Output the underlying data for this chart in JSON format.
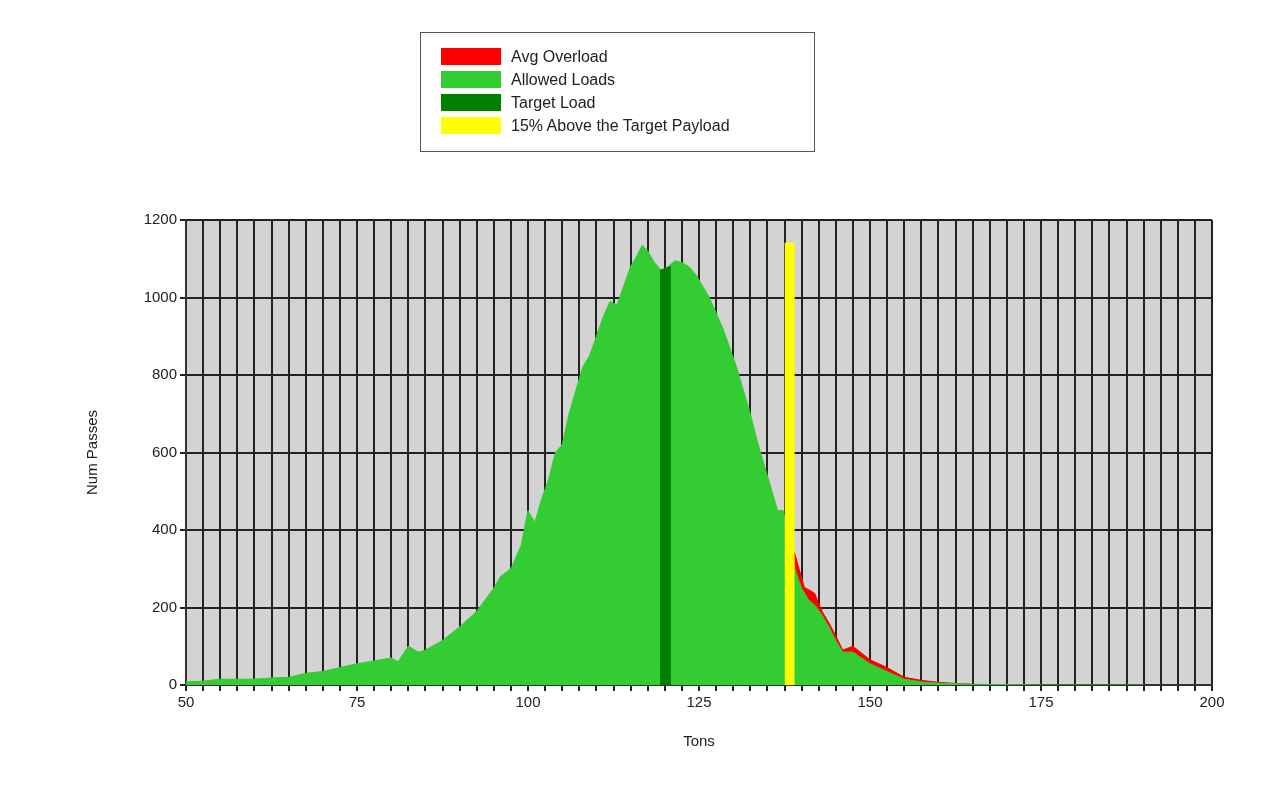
{
  "chart_data": {
    "type": "area",
    "xlabel": "Tons",
    "ylabel": "Num Passes",
    "legend": "top",
    "grid": true,
    "marker": "none",
    "xlim": [
      50,
      200
    ],
    "ylim": [
      0,
      1200
    ],
    "xticks": [
      50,
      {
        "value": 52.5,
        "label": null
      },
      {
        "value": 55,
        "label": null
      },
      {
        "value": 57.5,
        "label": null
      },
      {
        "value": 60,
        "label": null
      },
      {
        "value": 62.5,
        "label": null
      },
      {
        "value": 65,
        "label": null
      },
      {
        "value": 67.5,
        "label": null
      },
      {
        "value": 70,
        "label": null
      },
      {
        "value": 72.5,
        "label": null
      },
      75,
      {
        "value": 77.5,
        "label": null
      },
      {
        "value": 80,
        "label": null
      },
      {
        "value": 82.5,
        "label": null
      },
      {
        "value": 85,
        "label": null
      },
      {
        "value": 87.5,
        "label": null
      },
      {
        "value": 90,
        "label": null
      },
      {
        "value": 92.5,
        "label": null
      },
      {
        "value": 95,
        "label": null
      },
      {
        "value": 97.5,
        "label": null
      },
      100,
      {
        "value": 102.5,
        "label": null
      },
      {
        "value": 105,
        "label": null
      },
      {
        "value": 107.5,
        "label": null
      },
      {
        "value": 110,
        "label": null
      },
      {
        "value": 112.5,
        "label": null
      },
      {
        "value": 115,
        "label": null
      },
      {
        "value": 117.5,
        "label": null
      },
      {
        "value": 120,
        "label": null
      },
      {
        "value": 122.5,
        "label": null
      },
      125,
      {
        "value": 127.5,
        "label": null
      },
      {
        "value": 130,
        "label": null
      },
      {
        "value": 132.5,
        "label": null
      },
      {
        "value": 135,
        "label": null
      },
      {
        "value": 137.5,
        "label": null
      },
      {
        "value": 140,
        "label": null
      },
      {
        "value": 142.5,
        "label": null
      },
      {
        "value": 145,
        "label": null
      },
      {
        "value": 147.5,
        "label": null
      },
      150,
      {
        "value": 152.5,
        "label": null
      },
      {
        "value": 155,
        "label": null
      },
      {
        "value": 157.5,
        "label": null
      },
      {
        "value": 160,
        "label": null
      },
      {
        "value": 162.5,
        "label": null
      },
      {
        "value": 165,
        "label": null
      },
      {
        "value": 167.5,
        "label": null
      },
      {
        "value": 170,
        "label": null
      },
      {
        "value": 172.5,
        "label": null
      },
      175,
      {
        "value": 177.5,
        "label": null
      },
      {
        "value": 180,
        "label": null
      },
      {
        "value": 182.5,
        "label": null
      },
      {
        "value": 185,
        "label": null
      },
      {
        "value": 187.5,
        "label": null
      },
      {
        "value": 190,
        "label": null
      },
      {
        "value": 192.5,
        "label": null
      },
      {
        "value": 195,
        "label": null
      },
      {
        "value": 197.5,
        "label": null
      },
      200
    ],
    "yticks": [
      0,
      200,
      400,
      600,
      800,
      1000,
      1200
    ],
    "series": [
      {
        "name": "Avg Overload",
        "color": "#ff0000",
        "x": [
          138.9,
          140.4,
          141.9,
          143,
          144,
          145.2,
          146,
          147.5,
          150,
          152.5,
          155,
          157.5,
          160,
          162.5,
          165
        ],
        "values": [
          345,
          252,
          237,
          190,
          160,
          120,
          90,
          100,
          65,
          45,
          20,
          12,
          7,
          4,
          2
        ]
      },
      {
        "name": "Allowed Loads",
        "color": "#33cc33",
        "x": [
          50,
          52.5,
          55,
          57.5,
          60,
          62.5,
          65,
          67.5,
          70,
          72.5,
          75,
          77.5,
          80,
          81,
          82.5,
          84,
          85,
          87.5,
          90,
          92.5,
          95,
          96,
          97.5,
          99,
          100,
          101,
          102,
          103,
          104,
          105,
          106,
          107,
          108,
          109,
          110,
          111,
          112,
          113,
          114,
          115,
          116,
          116.7,
          117.5,
          118.5,
          119.5,
          120.5,
          121.5,
          122.5,
          123.5,
          124.5,
          125.5,
          126.5,
          127.5,
          128.5,
          129.5,
          130.5,
          131.5,
          132.5,
          133.5,
          134.5,
          135.5,
          136.5,
          137.3,
          139,
          140,
          141,
          142,
          143,
          144,
          145,
          146,
          147.5,
          150,
          152.5,
          155,
          157.5,
          160,
          165,
          170,
          175,
          190
        ],
        "values": [
          8,
          10,
          15,
          15,
          15,
          18,
          20,
          30,
          35,
          45,
          55,
          62,
          70,
          60,
          100,
          85,
          90,
          115,
          150,
          190,
          250,
          280,
          300,
          360,
          450,
          420,
          480,
          530,
          600,
          620,
          700,
          760,
          820,
          850,
          900,
          950,
          990,
          980,
          1030,
          1080,
          1110,
          1135,
          1120,
          1090,
          1070,
          1080,
          1095,
          1090,
          1080,
          1060,
          1030,
          1000,
          960,
          920,
          870,
          820,
          760,
          700,
          630,
          570,
          510,
          450,
          450,
          300,
          250,
          220,
          205,
          180,
          150,
          115,
          85,
          85,
          55,
          35,
          15,
          8,
          5,
          2,
          1,
          0,
          0
        ]
      },
      {
        "name": "Target Load",
        "color": "#008000",
        "x": [
          119.3,
          120.9
        ],
        "values": [
          1070,
          1080
        ]
      },
      {
        "name": "15% Above the Target Payload",
        "color": "#ffff00",
        "x": [
          137.5,
          139
        ],
        "values": [
          1140,
          1140
        ]
      }
    ]
  }
}
